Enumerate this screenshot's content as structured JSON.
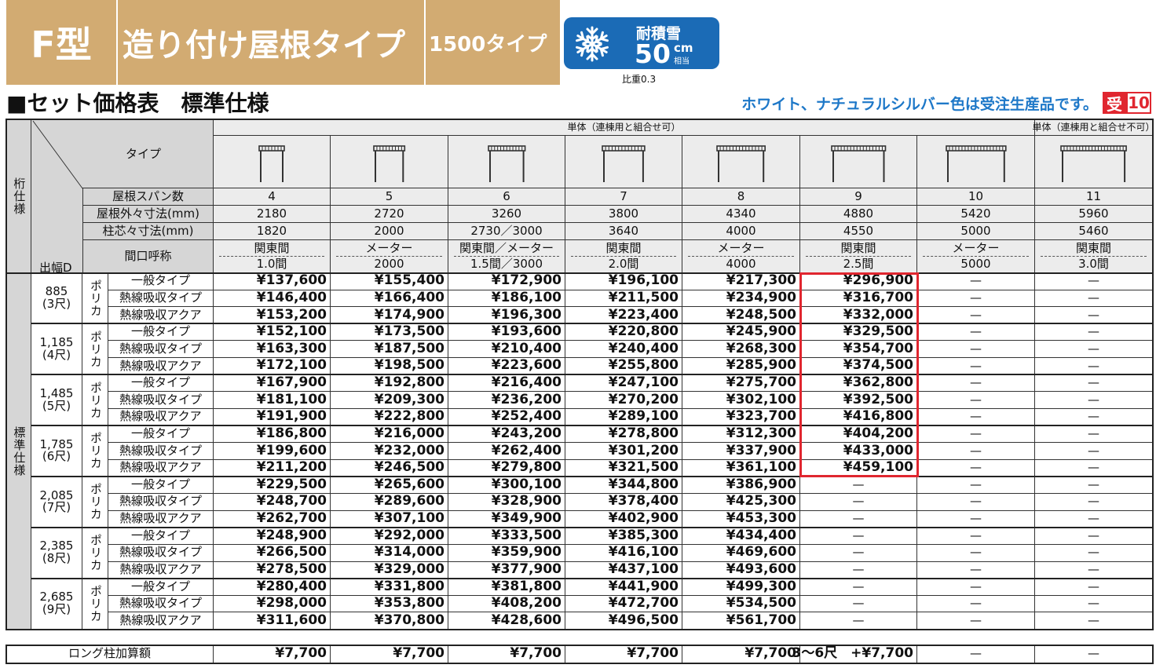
{
  "header": {
    "model": "F型",
    "title": "造り付け屋根タイプ",
    "subtype": "1500タイプ",
    "badge": {
      "label": "耐積雪",
      "value": "50",
      "unit": "cm",
      "note": "相当"
    },
    "specific_gravity": "比重0.3"
  },
  "section_title": "■セット価格表　標準仕様",
  "notice": "ホワイト、ナチュラルシルバー色は受注生産品です。",
  "notice_badge": {
    "mark": "受",
    "number": "10"
  },
  "table": {
    "corner_top": "桁仕様",
    "corner_bottom": "出幅D",
    "type_label": "タイプ",
    "group_headers": [
      "単体（連棟用と組合せ可）",
      "単体（連棟用と組合せ不可）"
    ],
    "spec_rows": [
      {
        "label": "屋根スパン数",
        "values": [
          "4",
          "5",
          "6",
          "7",
          "8",
          "9",
          "10",
          "11"
        ]
      },
      {
        "label": "屋根外々寸法(mm)",
        "values": [
          "2180",
          "2720",
          "3260",
          "3800",
          "4340",
          "4880",
          "5420",
          "5960"
        ]
      },
      {
        "label": "柱芯々寸法(mm)",
        "values": [
          "1820",
          "2000",
          "2730／3000",
          "3640",
          "4000",
          "4550",
          "5000",
          "5460"
        ]
      }
    ],
    "frontage": {
      "label": "間口呼称",
      "values": [
        [
          "関東間",
          "1.0間"
        ],
        [
          "メーター",
          "2000"
        ],
        [
          "関東間／メーター",
          "1.5間／3000"
        ],
        [
          "関東間",
          "2.0間"
        ],
        [
          "メーター",
          "4000"
        ],
        [
          "関東間",
          "2.5間"
        ],
        [
          "メーター",
          "5000"
        ],
        [
          "関東間",
          "3.0間"
        ]
      ]
    },
    "spec_label": "標準仕様",
    "groups": [
      {
        "depth": "885",
        "shaku": "(3尺)",
        "material": "ポリカ",
        "rows": [
          {
            "type": "一般タイプ",
            "prices": [
              "¥137,600",
              "¥155,400",
              "¥172,900",
              "¥196,100",
              "¥217,300",
              "¥296,900",
              "—",
              "—"
            ]
          },
          {
            "type": "熱線吸収タイプ",
            "prices": [
              "¥146,400",
              "¥166,400",
              "¥186,100",
              "¥211,500",
              "¥234,900",
              "¥316,700",
              "—",
              "—"
            ]
          },
          {
            "type": "熱線吸収アクア",
            "prices": [
              "¥153,200",
              "¥174,900",
              "¥196,300",
              "¥223,400",
              "¥248,500",
              "¥332,000",
              "—",
              "—"
            ]
          }
        ]
      },
      {
        "depth": "1,185",
        "shaku": "(4尺)",
        "material": "ポリカ",
        "rows": [
          {
            "type": "一般タイプ",
            "prices": [
              "¥152,100",
              "¥173,500",
              "¥193,600",
              "¥220,800",
              "¥245,900",
              "¥329,500",
              "—",
              "—"
            ]
          },
          {
            "type": "熱線吸収タイプ",
            "prices": [
              "¥163,300",
              "¥187,500",
              "¥210,400",
              "¥240,400",
              "¥268,300",
              "¥354,700",
              "—",
              "—"
            ]
          },
          {
            "type": "熱線吸収アクア",
            "prices": [
              "¥172,100",
              "¥198,500",
              "¥223,600",
              "¥255,800",
              "¥285,900",
              "¥374,500",
              "—",
              "—"
            ]
          }
        ]
      },
      {
        "depth": "1,485",
        "shaku": "(5尺)",
        "material": "ポリカ",
        "rows": [
          {
            "type": "一般タイプ",
            "prices": [
              "¥167,900",
              "¥192,800",
              "¥216,400",
              "¥247,100",
              "¥275,700",
              "¥362,800",
              "—",
              "—"
            ]
          },
          {
            "type": "熱線吸収タイプ",
            "prices": [
              "¥181,100",
              "¥209,300",
              "¥236,200",
              "¥270,200",
              "¥302,100",
              "¥392,500",
              "—",
              "—"
            ]
          },
          {
            "type": "熱線吸収アクア",
            "prices": [
              "¥191,900",
              "¥222,800",
              "¥252,400",
              "¥289,100",
              "¥323,700",
              "¥416,800",
              "—",
              "—"
            ]
          }
        ]
      },
      {
        "depth": "1,785",
        "shaku": "(6尺)",
        "material": "ポリカ",
        "rows": [
          {
            "type": "一般タイプ",
            "prices": [
              "¥186,800",
              "¥216,000",
              "¥243,200",
              "¥278,800",
              "¥312,300",
              "¥404,200",
              "—",
              "—"
            ]
          },
          {
            "type": "熱線吸収タイプ",
            "prices": [
              "¥199,600",
              "¥232,000",
              "¥262,400",
              "¥301,200",
              "¥337,900",
              "¥433,000",
              "—",
              "—"
            ]
          },
          {
            "type": "熱線吸収アクア",
            "prices": [
              "¥211,200",
              "¥246,500",
              "¥279,800",
              "¥321,500",
              "¥361,100",
              "¥459,100",
              "—",
              "—"
            ]
          }
        ]
      },
      {
        "depth": "2,085",
        "shaku": "(7尺)",
        "material": "ポリカ",
        "rows": [
          {
            "type": "一般タイプ",
            "prices": [
              "¥229,500",
              "¥265,600",
              "¥300,100",
              "¥344,800",
              "¥386,900",
              "—",
              "—",
              "—"
            ]
          },
          {
            "type": "熱線吸収タイプ",
            "prices": [
              "¥248,700",
              "¥289,600",
              "¥328,900",
              "¥378,400",
              "¥425,300",
              "—",
              "—",
              "—"
            ]
          },
          {
            "type": "熱線吸収アクア",
            "prices": [
              "¥262,700",
              "¥307,100",
              "¥349,900",
              "¥402,900",
              "¥453,300",
              "—",
              "—",
              "—"
            ]
          }
        ]
      },
      {
        "depth": "2,385",
        "shaku": "(8尺)",
        "material": "ポリカ",
        "rows": [
          {
            "type": "一般タイプ",
            "prices": [
              "¥248,900",
              "¥292,000",
              "¥333,500",
              "¥385,300",
              "¥434,400",
              "—",
              "—",
              "—"
            ]
          },
          {
            "type": "熱線吸収タイプ",
            "prices": [
              "¥266,500",
              "¥314,000",
              "¥359,900",
              "¥416,100",
              "¥469,600",
              "—",
              "—",
              "—"
            ]
          },
          {
            "type": "熱線吸収アクア",
            "prices": [
              "¥278,500",
              "¥329,000",
              "¥377,900",
              "¥437,100",
              "¥493,600",
              "—",
              "—",
              "—"
            ]
          }
        ]
      },
      {
        "depth": "2,685",
        "shaku": "(9尺)",
        "material": "ポリカ",
        "rows": [
          {
            "type": "一般タイプ",
            "prices": [
              "¥280,400",
              "¥331,800",
              "¥381,800",
              "¥441,900",
              "¥499,300",
              "—",
              "—",
              "—"
            ]
          },
          {
            "type": "熱線吸収タイプ",
            "prices": [
              "¥298,000",
              "¥353,800",
              "¥408,200",
              "¥472,700",
              "¥534,500",
              "—",
              "—",
              "—"
            ]
          },
          {
            "type": "熱線吸収アクア",
            "prices": [
              "¥311,600",
              "¥370,800",
              "¥428,600",
              "¥496,500",
              "¥561,700",
              "—",
              "—",
              "—"
            ]
          }
        ]
      }
    ]
  },
  "long_post": {
    "label": "ロング柱加算額",
    "values": [
      "¥7,700",
      "¥7,700",
      "¥7,700",
      "¥7,700",
      "¥7,700",
      "3～6尺　+¥7,700",
      "—",
      "—"
    ]
  }
}
